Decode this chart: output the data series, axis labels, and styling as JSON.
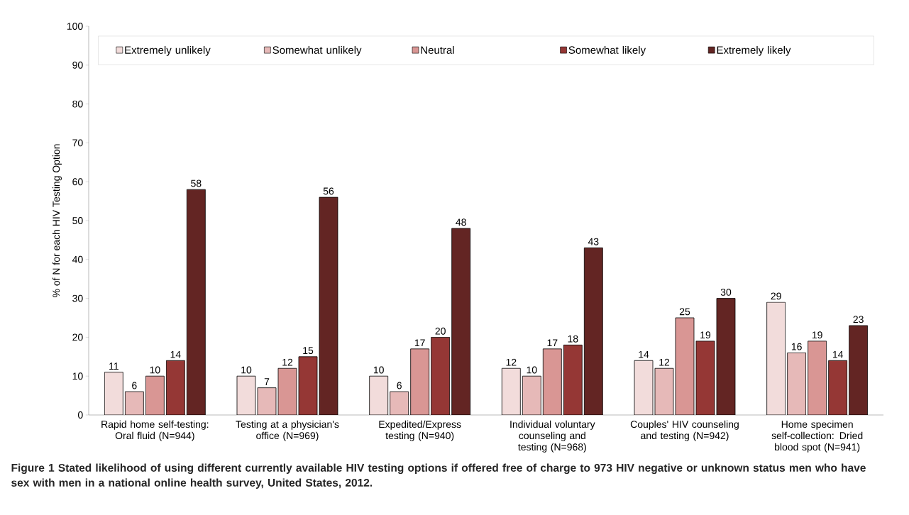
{
  "chart_data": {
    "type": "bar",
    "ylabel": "% of N for each HIV Testing Option",
    "categories": [
      "Rapid home self-testing: Oral fluid (N=944)",
      "Testing at a physician's office (N=969)",
      "Expedited/Express testing (N=940)",
      "Individual voluntary counseling and testing (N=968)",
      "Couples' HIV counseling and testing (N=942)",
      "Home specimen self-collection: Dried blood spot (N=941)"
    ],
    "series": [
      {
        "name": "Extremely unlikely",
        "color": "#f2dcdb",
        "values": [
          11,
          10,
          10,
          12,
          14,
          29
        ]
      },
      {
        "name": "Somewhat unlikely",
        "color": "#e6b9b8",
        "values": [
          6,
          7,
          6,
          10,
          12,
          16
        ]
      },
      {
        "name": "Neutral",
        "color": "#d99694",
        "values": [
          10,
          12,
          17,
          17,
          25,
          19
        ]
      },
      {
        "name": "Somewhat likely",
        "color": "#953735",
        "values": [
          14,
          15,
          20,
          18,
          19,
          14
        ]
      },
      {
        "name": "Extremely likely",
        "color": "#632523",
        "values": [
          58,
          56,
          48,
          43,
          30,
          23
        ]
      }
    ],
    "ylim": [
      0,
      100
    ],
    "yticks": [
      0,
      10,
      20,
      30,
      40,
      50,
      60,
      70,
      80,
      90,
      100
    ],
    "grid": false,
    "legend": "top",
    "data_labels": true,
    "annotations": [
      "**Figure 1** Stated likelihood of using different currently available HIV testing options if offered free of charge to 973 HIV negative or unknown status men who have sex with men in a national online health survey, United States, 2012."
    ]
  }
}
